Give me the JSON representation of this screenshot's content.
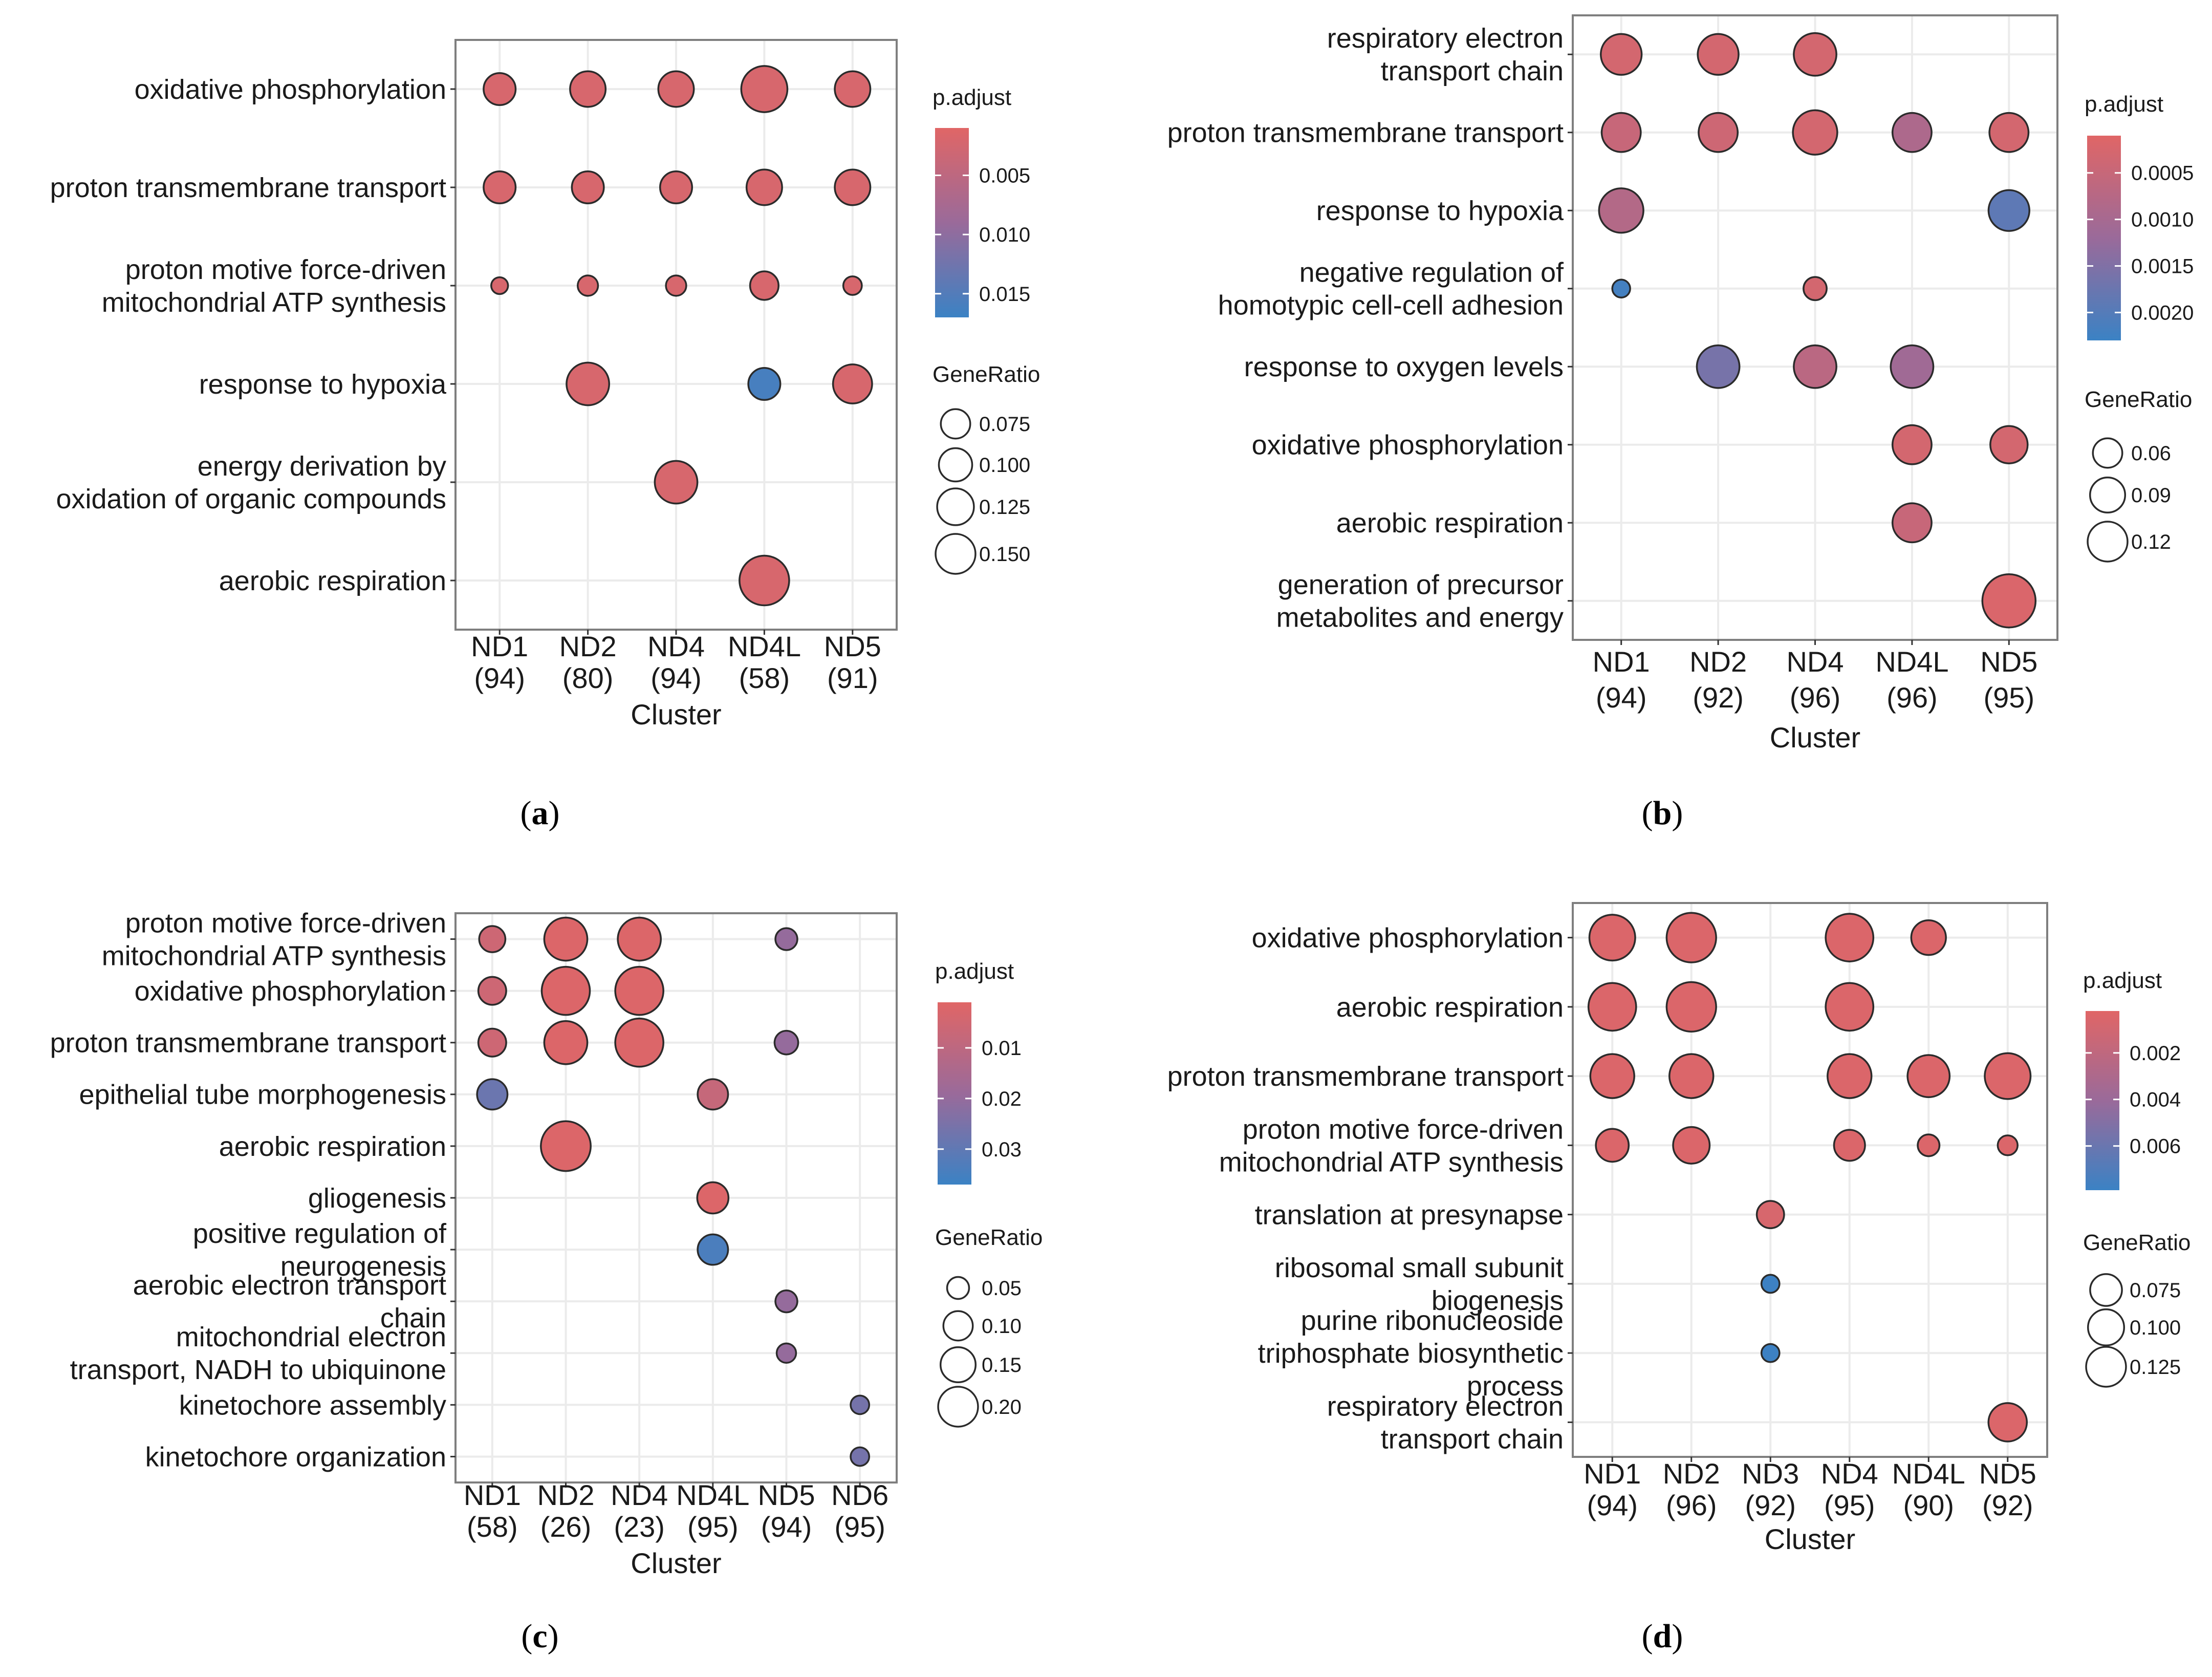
{
  "chart_data": [
    {
      "panel": "a",
      "type": "scatter",
      "caption": "(a)",
      "xlabel": "Cluster",
      "categories": [
        "ND1\n(94)",
        "ND2\n(80)",
        "ND4\n(94)",
        "ND4L\n(58)",
        "ND5\n(91)"
      ],
      "terms": [
        "oxidative phosphorylation",
        "proton transmembrane transport",
        "proton motive force-driven\nmitochondrial ATP synthesis",
        "response to hypoxia",
        "energy derivation by\noxidation of organic compounds",
        "aerobic respiration"
      ],
      "legend": {
        "color_title": "p.adjust",
        "color_range": [
          0.001,
          0.017
        ],
        "color_ticks": [
          0.005,
          0.01,
          0.015
        ],
        "color_tick_labels": [
          "0.005",
          "0.010",
          "0.015"
        ],
        "size_title": "GeneRatio",
        "size_range": [
          0.05,
          0.16
        ],
        "size_ticks": [
          0.075,
          0.1,
          0.125,
          0.15
        ],
        "size_tick_labels": [
          "0.075",
          "0.100",
          "0.125",
          "0.150"
        ]
      },
      "points": [
        {
          "x": 0,
          "y": 0,
          "gene_ratio": 0.1,
          "p_adjust": 0.002
        },
        {
          "x": 1,
          "y": 0,
          "gene_ratio": 0.11,
          "p_adjust": 0.002
        },
        {
          "x": 2,
          "y": 0,
          "gene_ratio": 0.11,
          "p_adjust": 0.002
        },
        {
          "x": 3,
          "y": 0,
          "gene_ratio": 0.14,
          "p_adjust": 0.002
        },
        {
          "x": 4,
          "y": 0,
          "gene_ratio": 0.11,
          "p_adjust": 0.002
        },
        {
          "x": 0,
          "y": 1,
          "gene_ratio": 0.1,
          "p_adjust": 0.002
        },
        {
          "x": 1,
          "y": 1,
          "gene_ratio": 0.1,
          "p_adjust": 0.002
        },
        {
          "x": 2,
          "y": 1,
          "gene_ratio": 0.1,
          "p_adjust": 0.002
        },
        {
          "x": 3,
          "y": 1,
          "gene_ratio": 0.11,
          "p_adjust": 0.002
        },
        {
          "x": 4,
          "y": 1,
          "gene_ratio": 0.11,
          "p_adjust": 0.002
        },
        {
          "x": 0,
          "y": 2,
          "gene_ratio": 0.057,
          "p_adjust": 0.002
        },
        {
          "x": 1,
          "y": 2,
          "gene_ratio": 0.067,
          "p_adjust": 0.002
        },
        {
          "x": 2,
          "y": 2,
          "gene_ratio": 0.067,
          "p_adjust": 0.002
        },
        {
          "x": 3,
          "y": 2,
          "gene_ratio": 0.09,
          "p_adjust": 0.002
        },
        {
          "x": 4,
          "y": 2,
          "gene_ratio": 0.062,
          "p_adjust": 0.002
        },
        {
          "x": 1,
          "y": 3,
          "gene_ratio": 0.13,
          "p_adjust": 0.002
        },
        {
          "x": 3,
          "y": 3,
          "gene_ratio": 0.1,
          "p_adjust": 0.016
        },
        {
          "x": 4,
          "y": 3,
          "gene_ratio": 0.12,
          "p_adjust": 0.002
        },
        {
          "x": 2,
          "y": 4,
          "gene_ratio": 0.13,
          "p_adjust": 0.002
        },
        {
          "x": 3,
          "y": 5,
          "gene_ratio": 0.15,
          "p_adjust": 0.002
        }
      ]
    },
    {
      "panel": "b",
      "type": "scatter",
      "caption": "(b)",
      "xlabel": "Cluster",
      "categories": [
        "ND1\n(94)",
        "ND2\n(92)",
        "ND4\n(96)",
        "ND4L\n(96)",
        "ND5\n(95)"
      ],
      "terms": [
        "respiratory electron\ntransport chain",
        "proton transmembrane transport",
        "response to hypoxia",
        "negative regulation of\nhomotypic cell-cell adhesion",
        "response to oxygen levels",
        "oxidative phosphorylation",
        "aerobic respiration",
        "generation of precursor\nmetabolites and energy"
      ],
      "legend": {
        "color_title": "p.adjust",
        "color_range": [
          0.0001,
          0.0023
        ],
        "color_ticks": [
          0.0005,
          0.001,
          0.0015,
          0.002
        ],
        "color_tick_labels": [
          "0.0005",
          "0.0010",
          "0.0015",
          "0.0020"
        ],
        "size_title": "GeneRatio",
        "size_range": [
          0.03,
          0.14
        ],
        "size_ticks": [
          0.06,
          0.09,
          0.12
        ],
        "size_tick_labels": [
          "0.06",
          "0.09",
          "0.12"
        ]
      },
      "points": [
        {
          "x": 0,
          "y": 0,
          "gene_ratio": 0.105,
          "p_adjust": 0.0003
        },
        {
          "x": 1,
          "y": 0,
          "gene_ratio": 0.105,
          "p_adjust": 0.0003
        },
        {
          "x": 2,
          "y": 0,
          "gene_ratio": 0.11,
          "p_adjust": 0.0003
        },
        {
          "x": 0,
          "y": 1,
          "gene_ratio": 0.1,
          "p_adjust": 0.0005
        },
        {
          "x": 1,
          "y": 1,
          "gene_ratio": 0.1,
          "p_adjust": 0.0004
        },
        {
          "x": 2,
          "y": 1,
          "gene_ratio": 0.115,
          "p_adjust": 0.0003
        },
        {
          "x": 3,
          "y": 1,
          "gene_ratio": 0.1,
          "p_adjust": 0.0009
        },
        {
          "x": 4,
          "y": 1,
          "gene_ratio": 0.1,
          "p_adjust": 0.0003
        },
        {
          "x": 0,
          "y": 2,
          "gene_ratio": 0.115,
          "p_adjust": 0.0008
        },
        {
          "x": 4,
          "y": 2,
          "gene_ratio": 0.105,
          "p_adjust": 0.0019
        },
        {
          "x": 0,
          "y": 3,
          "gene_ratio": 0.04,
          "p_adjust": 0.0022
        },
        {
          "x": 2,
          "y": 3,
          "gene_ratio": 0.055,
          "p_adjust": 0.0003
        },
        {
          "x": 1,
          "y": 4,
          "gene_ratio": 0.11,
          "p_adjust": 0.0016
        },
        {
          "x": 2,
          "y": 4,
          "gene_ratio": 0.11,
          "p_adjust": 0.0007
        },
        {
          "x": 3,
          "y": 4,
          "gene_ratio": 0.11,
          "p_adjust": 0.0011
        },
        {
          "x": 3,
          "y": 5,
          "gene_ratio": 0.1,
          "p_adjust": 0.0003
        },
        {
          "x": 4,
          "y": 5,
          "gene_ratio": 0.095,
          "p_adjust": 0.0003
        },
        {
          "x": 3,
          "y": 6,
          "gene_ratio": 0.1,
          "p_adjust": 0.0005
        },
        {
          "x": 4,
          "y": 7,
          "gene_ratio": 0.14,
          "p_adjust": 0.0002
        }
      ]
    },
    {
      "panel": "c",
      "type": "scatter",
      "caption": "(c)",
      "xlabel": "Cluster",
      "categories": [
        "ND1\n(58)",
        "ND2\n(26)",
        "ND4\n(23)",
        "ND4L\n(95)",
        "ND5\n(94)",
        "ND6\n(95)"
      ],
      "terms": [
        "proton motive force-driven\nmitochondrial ATP synthesis",
        "oxidative phosphorylation",
        "proton transmembrane transport",
        "epithelial tube morphogenesis",
        "aerobic respiration",
        "gliogenesis",
        "positive regulation of\nneurogenesis",
        "aerobic electron transport\nchain",
        "mitochondrial electron\ntransport, NADH to ubiquinone",
        "kinetochore assembly",
        "kinetochore organization"
      ],
      "legend": {
        "color_title": "p.adjust",
        "color_range": [
          0.001,
          0.037
        ],
        "color_ticks": [
          0.01,
          0.02,
          0.03
        ],
        "color_tick_labels": [
          "0.01",
          "0.02",
          "0.03"
        ],
        "size_title": "GeneRatio",
        "size_range": [
          0.02,
          0.25
        ],
        "size_ticks": [
          0.05,
          0.1,
          0.15,
          0.2
        ],
        "size_tick_labels": [
          "0.05",
          "0.10",
          "0.15",
          "0.20"
        ]
      },
      "points": [
        {
          "x": 0,
          "y": 0,
          "gene_ratio": 0.09,
          "p_adjust": 0.006
        },
        {
          "x": 1,
          "y": 0,
          "gene_ratio": 0.19,
          "p_adjust": 0.002
        },
        {
          "x": 2,
          "y": 0,
          "gene_ratio": 0.19,
          "p_adjust": 0.002
        },
        {
          "x": 4,
          "y": 0,
          "gene_ratio": 0.065,
          "p_adjust": 0.02
        },
        {
          "x": 0,
          "y": 1,
          "gene_ratio": 0.1,
          "p_adjust": 0.006
        },
        {
          "x": 1,
          "y": 1,
          "gene_ratio": 0.22,
          "p_adjust": 0.002
        },
        {
          "x": 2,
          "y": 1,
          "gene_ratio": 0.22,
          "p_adjust": 0.002
        },
        {
          "x": 0,
          "y": 2,
          "gene_ratio": 0.1,
          "p_adjust": 0.006
        },
        {
          "x": 1,
          "y": 2,
          "gene_ratio": 0.19,
          "p_adjust": 0.002
        },
        {
          "x": 2,
          "y": 2,
          "gene_ratio": 0.22,
          "p_adjust": 0.002
        },
        {
          "x": 4,
          "y": 2,
          "gene_ratio": 0.075,
          "p_adjust": 0.02
        },
        {
          "x": 0,
          "y": 3,
          "gene_ratio": 0.115,
          "p_adjust": 0.028
        },
        {
          "x": 3,
          "y": 3,
          "gene_ratio": 0.115,
          "p_adjust": 0.008
        },
        {
          "x": 1,
          "y": 4,
          "gene_ratio": 0.23,
          "p_adjust": 0.002
        },
        {
          "x": 3,
          "y": 5,
          "gene_ratio": 0.12,
          "p_adjust": 0.002
        },
        {
          "x": 3,
          "y": 6,
          "gene_ratio": 0.115,
          "p_adjust": 0.034
        },
        {
          "x": 4,
          "y": 7,
          "gene_ratio": 0.065,
          "p_adjust": 0.02
        },
        {
          "x": 4,
          "y": 8,
          "gene_ratio": 0.05,
          "p_adjust": 0.02
        },
        {
          "x": 5,
          "y": 9,
          "gene_ratio": 0.045,
          "p_adjust": 0.026
        },
        {
          "x": 5,
          "y": 10,
          "gene_ratio": 0.045,
          "p_adjust": 0.026
        }
      ]
    },
    {
      "panel": "d",
      "type": "scatter",
      "caption": "(d)",
      "xlabel": "Cluster",
      "categories": [
        "ND1\n(94)",
        "ND2\n(96)",
        "ND3\n(92)",
        "ND4\n(95)",
        "ND4L\n(90)",
        "ND5\n(92)"
      ],
      "terms": [
        "oxidative phosphorylation",
        "aerobic respiration",
        "proton transmembrane transport",
        "proton motive force-driven\nmitochondrial ATP synthesis",
        "translation at presynapse",
        "ribosomal small subunit\nbiogenesis",
        "purine ribonucleoside\ntriphosphate biosynthetic\nprocess",
        "respiratory electron\ntransport chain"
      ],
      "legend": {
        "color_title": "p.adjust",
        "color_range": [
          0.0002,
          0.0079
        ],
        "color_ticks": [
          0.002,
          0.004,
          0.006
        ],
        "color_tick_labels": [
          "0.002",
          "0.004",
          "0.006"
        ],
        "size_title": "GeneRatio",
        "size_range": [
          0.04,
          0.145
        ],
        "size_ticks": [
          0.075,
          0.1,
          0.125
        ],
        "size_tick_labels": [
          "0.075",
          "0.100",
          "0.125"
        ]
      },
      "points": [
        {
          "x": 0,
          "y": 0,
          "gene_ratio": 0.125,
          "p_adjust": 0.0005
        },
        {
          "x": 1,
          "y": 0,
          "gene_ratio": 0.135,
          "p_adjust": 0.0005
        },
        {
          "x": 3,
          "y": 0,
          "gene_ratio": 0.13,
          "p_adjust": 0.0005
        },
        {
          "x": 4,
          "y": 0,
          "gene_ratio": 0.095,
          "p_adjust": 0.0005
        },
        {
          "x": 0,
          "y": 1,
          "gene_ratio": 0.13,
          "p_adjust": 0.0005
        },
        {
          "x": 1,
          "y": 1,
          "gene_ratio": 0.135,
          "p_adjust": 0.0005
        },
        {
          "x": 3,
          "y": 1,
          "gene_ratio": 0.13,
          "p_adjust": 0.0005
        },
        {
          "x": 0,
          "y": 2,
          "gene_ratio": 0.12,
          "p_adjust": 0.0005
        },
        {
          "x": 1,
          "y": 2,
          "gene_ratio": 0.12,
          "p_adjust": 0.0005
        },
        {
          "x": 3,
          "y": 2,
          "gene_ratio": 0.12,
          "p_adjust": 0.0005
        },
        {
          "x": 4,
          "y": 2,
          "gene_ratio": 0.115,
          "p_adjust": 0.0005
        },
        {
          "x": 5,
          "y": 2,
          "gene_ratio": 0.125,
          "p_adjust": 0.0005
        },
        {
          "x": 0,
          "y": 3,
          "gene_ratio": 0.09,
          "p_adjust": 0.0005
        },
        {
          "x": 1,
          "y": 3,
          "gene_ratio": 0.1,
          "p_adjust": 0.0005
        },
        {
          "x": 3,
          "y": 3,
          "gene_ratio": 0.085,
          "p_adjust": 0.0005
        },
        {
          "x": 4,
          "y": 3,
          "gene_ratio": 0.06,
          "p_adjust": 0.0005
        },
        {
          "x": 5,
          "y": 3,
          "gene_ratio": 0.055,
          "p_adjust": 0.0005
        },
        {
          "x": 2,
          "y": 4,
          "gene_ratio": 0.075,
          "p_adjust": 0.0007
        },
        {
          "x": 2,
          "y": 5,
          "gene_ratio": 0.05,
          "p_adjust": 0.0078
        },
        {
          "x": 2,
          "y": 6,
          "gene_ratio": 0.05,
          "p_adjust": 0.0078
        },
        {
          "x": 5,
          "y": 7,
          "gene_ratio": 0.105,
          "p_adjust": 0.0005
        }
      ]
    }
  ],
  "colors": {
    "low_p": "#e06666",
    "high_p": "#3b82c4",
    "grid": "#ebebeb",
    "frame": "#7f7f7f",
    "text": "#1a1a1a"
  }
}
